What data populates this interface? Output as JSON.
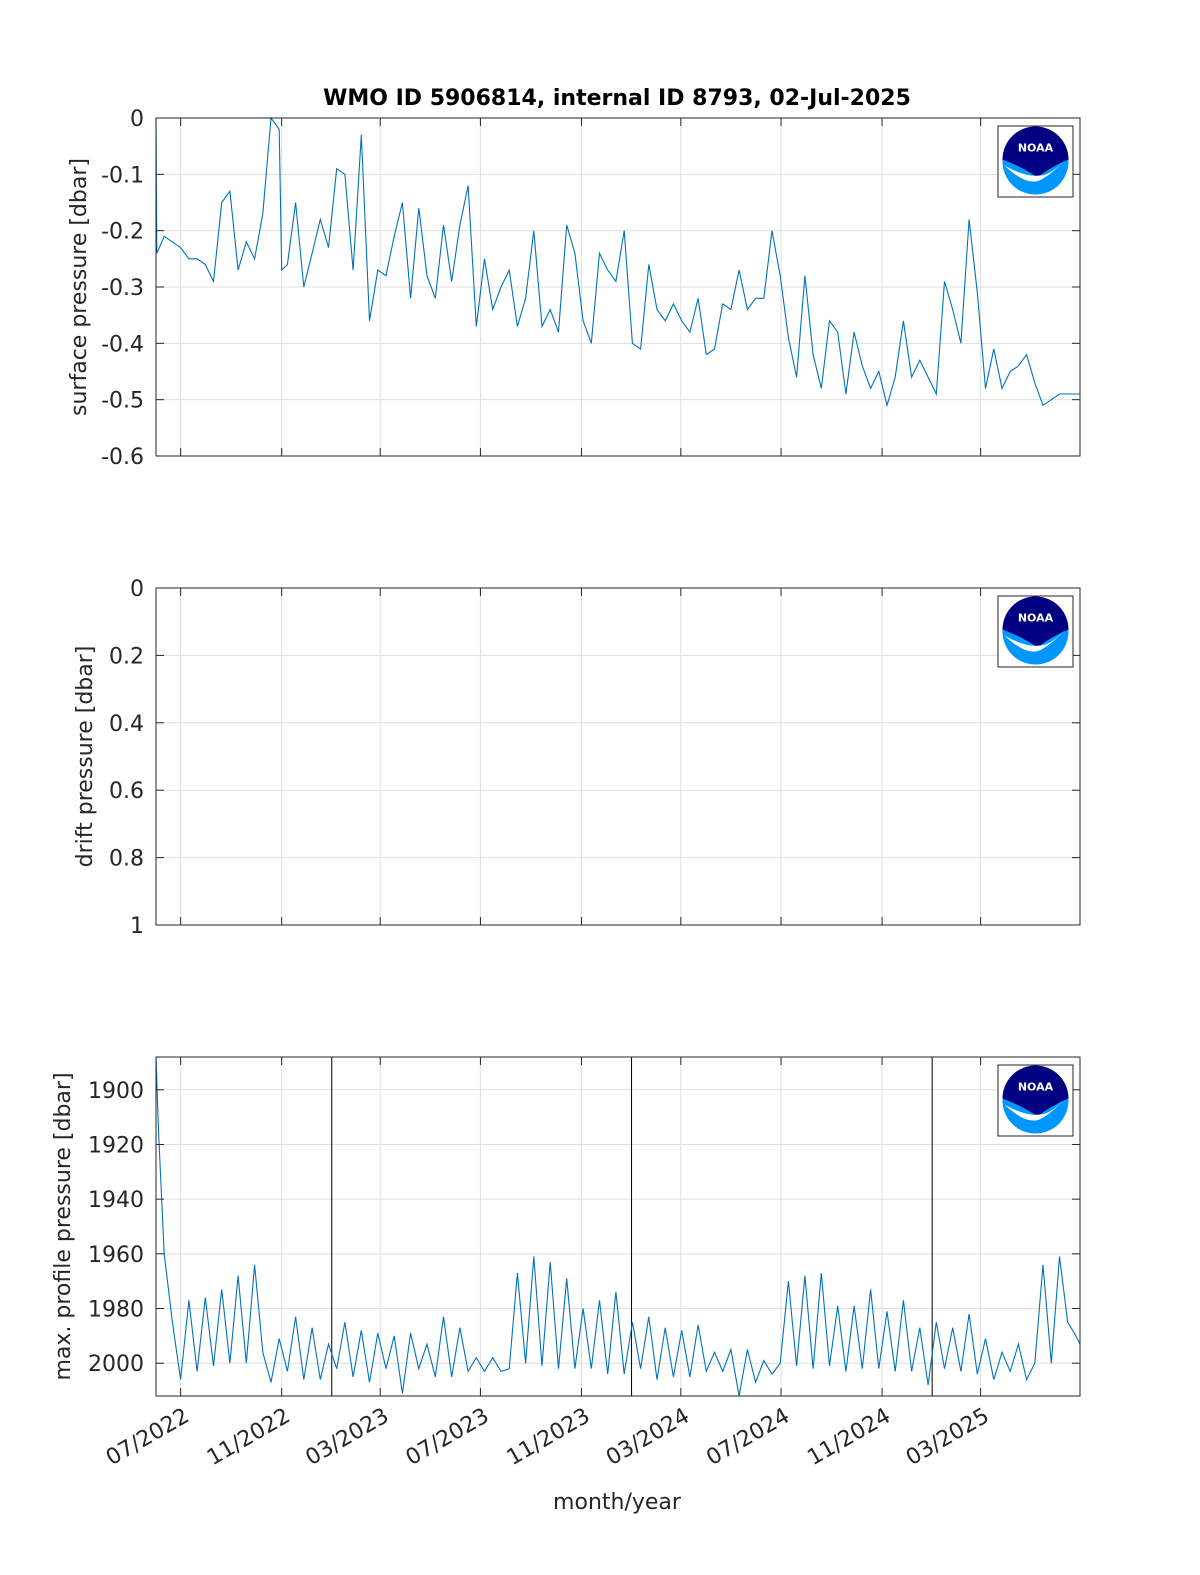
{
  "title": "WMO ID 5906814, internal ID 8793, 02-Jul-2025",
  "xlabel": "month/year",
  "x_tick_labels": [
    "07/2022",
    "11/2022",
    "03/2023",
    "07/2023",
    "11/2023",
    "03/2024",
    "07/2024",
    "11/2024",
    "03/2025"
  ],
  "x_tick_dates": [
    "2022-07-01",
    "2022-11-01",
    "2023-03-01",
    "2023-07-01",
    "2023-11-01",
    "2024-03-01",
    "2024-07-01",
    "2024-11-01",
    "2025-03-01"
  ],
  "x_range": [
    "2022-06-01",
    "2025-06-30"
  ],
  "logo": {
    "text": "NOAA",
    "colors": {
      "dark": "#000080",
      "light": "#0096ff"
    }
  },
  "colors": {
    "series": "#0072bd"
  },
  "chart_data": [
    {
      "type": "line",
      "ylabel": "surface pressure [dbar]",
      "ylim": [
        -0.6,
        0
      ],
      "yticks": [
        "-0.6",
        "-0.5",
        "-0.4",
        "-0.3",
        "-0.2",
        "-0.1",
        "0"
      ],
      "y_reversed": false,
      "grid": true,
      "series": [
        {
          "x": [
            "2022-06-01",
            "2022-06-02",
            "2022-06-05",
            "2022-06-11",
            "2022-06-21",
            "2022-07-01",
            "2022-07-11",
            "2022-07-21",
            "2022-07-31",
            "2022-08-10",
            "2022-08-20",
            "2022-08-30",
            "2022-09-09",
            "2022-09-19",
            "2022-09-29",
            "2022-10-09",
            "2022-10-19",
            "2022-10-29",
            "2022-11-01",
            "2022-11-08",
            "2022-11-18",
            "2022-11-28",
            "2022-12-08",
            "2022-12-18",
            "2022-12-28",
            "2023-01-07",
            "2023-01-17",
            "2023-01-27",
            "2023-02-06",
            "2023-02-16",
            "2023-02-26",
            "2023-03-08",
            "2023-03-18",
            "2023-03-28",
            "2023-04-07",
            "2023-04-17",
            "2023-04-27",
            "2023-05-07",
            "2023-05-17",
            "2023-05-27",
            "2023-06-06",
            "2023-06-16",
            "2023-06-26",
            "2023-07-06",
            "2023-07-16",
            "2023-07-26",
            "2023-08-05",
            "2023-08-15",
            "2023-08-25",
            "2023-09-04",
            "2023-09-14",
            "2023-09-24",
            "2023-10-04",
            "2023-10-14",
            "2023-10-24",
            "2023-11-03",
            "2023-11-13",
            "2023-11-23",
            "2023-12-03",
            "2023-12-13",
            "2023-12-23",
            "2024-01-02",
            "2024-01-12",
            "2024-01-22",
            "2024-02-01",
            "2024-02-11",
            "2024-02-21",
            "2024-03-02",
            "2024-03-12",
            "2024-03-22",
            "2024-04-01",
            "2024-04-11",
            "2024-04-21",
            "2024-05-01",
            "2024-05-11",
            "2024-05-21",
            "2024-05-31",
            "2024-06-10",
            "2024-06-20",
            "2024-06-30",
            "2024-07-10",
            "2024-07-20",
            "2024-07-30",
            "2024-08-09",
            "2024-08-19",
            "2024-08-29",
            "2024-09-08",
            "2024-09-18",
            "2024-09-28",
            "2024-10-08",
            "2024-10-18",
            "2024-10-28",
            "2024-11-07",
            "2024-11-17",
            "2024-11-27",
            "2024-12-07",
            "2024-12-17",
            "2024-12-27",
            "2025-01-06",
            "2025-01-16",
            "2025-01-26",
            "2025-02-05",
            "2025-02-15",
            "2025-02-25",
            "2025-03-07",
            "2025-03-17",
            "2025-03-27",
            "2025-04-06",
            "2025-04-16",
            "2025-04-26",
            "2025-05-06",
            "2025-05-16",
            "2025-05-26",
            "2025-06-05",
            "2025-06-15",
            "2025-06-25",
            "2025-06-30"
          ],
          "y": [
            0,
            -0.24,
            -0.23,
            -0.21,
            -0.22,
            -0.23,
            -0.25,
            -0.25,
            -0.26,
            -0.29,
            -0.15,
            -0.13,
            -0.27,
            -0.22,
            -0.25,
            -0.17,
            0,
            -0.02,
            -0.27,
            -0.26,
            -0.15,
            -0.3,
            -0.24,
            -0.18,
            -0.23,
            -0.09,
            -0.1,
            -0.27,
            -0.03,
            -0.36,
            -0.27,
            -0.28,
            -0.21,
            -0.15,
            -0.32,
            -0.16,
            -0.28,
            -0.32,
            -0.19,
            -0.29,
            -0.19,
            -0.12,
            -0.37,
            -0.25,
            -0.34,
            -0.3,
            -0.27,
            -0.37,
            -0.32,
            -0.2,
            -0.37,
            -0.34,
            -0.38,
            -0.19,
            -0.24,
            -0.36,
            -0.4,
            -0.24,
            -0.27,
            -0.29,
            -0.2,
            -0.4,
            -0.41,
            -0.26,
            -0.34,
            -0.36,
            -0.33,
            -0.36,
            -0.38,
            -0.32,
            -0.42,
            -0.41,
            -0.33,
            -0.34,
            -0.27,
            -0.34,
            -0.32,
            -0.32,
            -0.2,
            -0.28,
            -0.39,
            -0.46,
            -0.28,
            -0.42,
            -0.48,
            -0.36,
            -0.38,
            -0.49,
            -0.38,
            -0.44,
            -0.48,
            -0.45,
            -0.51,
            -0.46,
            -0.36,
            -0.46,
            -0.43,
            -0.46,
            -0.49,
            -0.29,
            -0.34,
            -0.4,
            -0.18,
            -0.31,
            -0.48,
            -0.41,
            -0.48,
            -0.45,
            -0.44,
            -0.42,
            -0.47,
            -0.51,
            -0.5,
            -0.49,
            -0.49,
            -0.49,
            -0.49
          ]
        }
      ]
    },
    {
      "type": "line",
      "ylabel": "drift pressure [dbar]",
      "ylim": [
        0,
        1
      ],
      "yticks": [
        "0",
        "0.2",
        "0.4",
        "0.6",
        "0.8",
        "1"
      ],
      "y_reversed": true,
      "grid": true,
      "series": []
    },
    {
      "type": "line",
      "ylabel": "max. profile pressure [dbar]",
      "ylim": [
        1888,
        2012
      ],
      "yticks": [
        "1900",
        "1920",
        "1940",
        "1960",
        "1980",
        "2000"
      ],
      "y_reversed": true,
      "grid": true,
      "vertical_lines": [
        "2023-01-01",
        "2024-01-01",
        "2025-01-01"
      ],
      "series": [
        {
          "x": [
            "2022-06-01",
            "2022-06-04",
            "2022-06-11",
            "2022-06-21",
            "2022-07-01",
            "2022-07-11",
            "2022-07-21",
            "2022-07-31",
            "2022-08-10",
            "2022-08-20",
            "2022-08-30",
            "2022-09-09",
            "2022-09-19",
            "2022-09-29",
            "2022-10-09",
            "2022-10-19",
            "2022-10-29",
            "2022-11-08",
            "2022-11-18",
            "2022-11-28",
            "2022-12-08",
            "2022-12-18",
            "2022-12-28",
            "2023-01-07",
            "2023-01-17",
            "2023-01-27",
            "2023-02-06",
            "2023-02-16",
            "2023-02-26",
            "2023-03-08",
            "2023-03-18",
            "2023-03-28",
            "2023-04-07",
            "2023-04-17",
            "2023-04-27",
            "2023-05-07",
            "2023-05-17",
            "2023-05-27",
            "2023-06-06",
            "2023-06-16",
            "2023-06-26",
            "2023-07-06",
            "2023-07-16",
            "2023-07-26",
            "2023-08-05",
            "2023-08-15",
            "2023-08-25",
            "2023-09-04",
            "2023-09-14",
            "2023-09-24",
            "2023-10-04",
            "2023-10-14",
            "2023-10-24",
            "2023-11-03",
            "2023-11-13",
            "2023-11-23",
            "2023-12-03",
            "2023-12-13",
            "2023-12-23",
            "2024-01-02",
            "2024-01-12",
            "2024-01-22",
            "2024-02-01",
            "2024-02-11",
            "2024-02-21",
            "2024-03-02",
            "2024-03-12",
            "2024-03-22",
            "2024-04-01",
            "2024-04-11",
            "2024-04-21",
            "2024-05-01",
            "2024-05-11",
            "2024-05-21",
            "2024-05-31",
            "2024-06-10",
            "2024-06-20",
            "2024-06-30",
            "2024-07-10",
            "2024-07-20",
            "2024-07-30",
            "2024-08-09",
            "2024-08-19",
            "2024-08-29",
            "2024-09-08",
            "2024-09-18",
            "2024-09-28",
            "2024-10-08",
            "2024-10-18",
            "2024-10-28",
            "2024-11-07",
            "2024-11-17",
            "2024-11-27",
            "2024-12-07",
            "2024-12-17",
            "2024-12-27",
            "2025-01-06",
            "2025-01-16",
            "2025-01-26",
            "2025-02-05",
            "2025-02-15",
            "2025-02-25",
            "2025-03-07",
            "2025-03-17",
            "2025-03-27",
            "2025-04-06",
            "2025-04-16",
            "2025-04-26",
            "2025-05-06",
            "2025-05-16",
            "2025-05-26",
            "2025-06-05",
            "2025-06-15",
            "2025-06-25",
            "2025-06-30"
          ],
          "y": [
            1888,
            1915,
            1960,
            1985,
            2006,
            1977,
            2003,
            1976,
            2001,
            1973,
            2000,
            1968,
            2000,
            1964,
            1996,
            2007,
            1991,
            2003,
            1983,
            2006,
            1987,
            2006,
            1993,
            2002,
            1985,
            2005,
            1988,
            2007,
            1989,
            2002,
            1990,
            2011,
            1989,
            2002,
            1993,
            2005,
            1983,
            2005,
            1987,
            2003,
            1998,
            2003,
            1998,
            2003,
            2002,
            1967,
            2000,
            1961,
            2001,
            1963,
            2002,
            1969,
            2002,
            1980,
            2002,
            1977,
            2004,
            1974,
            2004,
            1985,
            2002,
            1983,
            2006,
            1987,
            2005,
            1988,
            2005,
            1986,
            2003,
            1996,
            2003,
            1995,
            2012,
            1995,
            2007,
            1999,
            2004,
            2000,
            1970,
            2001,
            1968,
            2002,
            1967,
            2001,
            1979,
            2003,
            1979,
            2002,
            1973,
            2002,
            1981,
            2003,
            1977,
            2003,
            1987,
            2008,
            1985,
            2002,
            1987,
            2003,
            1982,
            2004,
            1991,
            2006,
            1996,
            2003,
            1993,
            2006,
            2000,
            1964,
            2000,
            1961,
            1985,
            1990,
            1993
          ]
        }
      ]
    }
  ]
}
